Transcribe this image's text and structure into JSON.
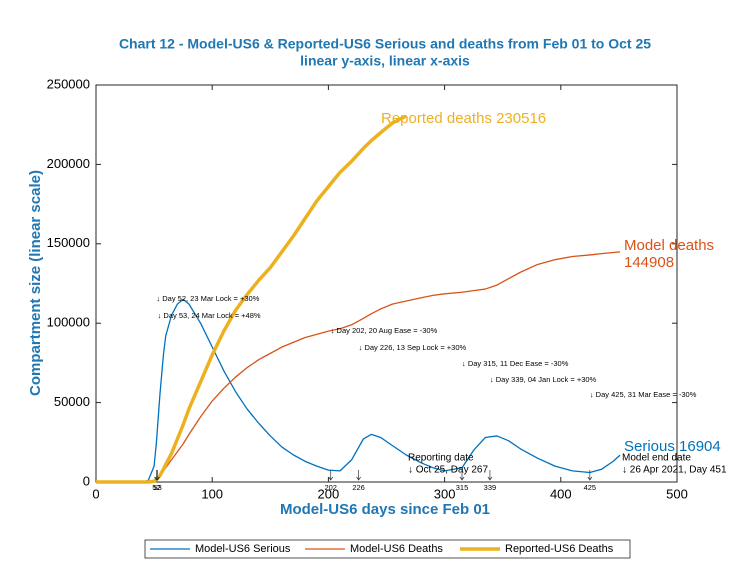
{
  "chart_data": {
    "type": "line",
    "title": "Chart 12 - Model-US6 & Reported-US6 Serious and deaths from Feb 01 to Oct 25",
    "subtitle": "linear y-axis, linear x-axis",
    "x_label": "Model-US6 days since Feb 01",
    "y_label": "Compartment size (linear scale)",
    "xlim": [
      0,
      500
    ],
    "xticks": [
      0,
      100,
      200,
      300,
      400,
      500
    ],
    "ylim": [
      0,
      250000
    ],
    "yticks": [
      0,
      50000,
      100000,
      150000,
      200000,
      250000
    ],
    "grid": false,
    "legend": "bottom",
    "x": [
      0,
      10,
      20,
      30,
      40,
      45,
      50,
      52,
      55,
      58,
      60,
      65,
      70,
      75,
      80,
      90,
      100,
      110,
      120,
      130,
      140,
      150,
      160,
      170,
      180,
      190,
      200,
      210,
      220,
      230,
      237,
      245,
      255,
      267,
      280,
      290,
      300,
      315,
      325,
      335,
      345,
      355,
      365,
      380,
      395,
      410,
      425,
      435,
      445,
      451
    ],
    "series": [
      {
        "name": "Model-US6 Serious",
        "color": "#0072bd",
        "width": 1.3,
        "values": [
          0,
          0,
          0,
          0,
          0,
          1000,
          10000,
          25000,
          55000,
          80000,
          92000,
          105000,
          112000,
          115000,
          112000,
          100000,
          85000,
          70000,
          57000,
          46000,
          37000,
          29000,
          22000,
          17000,
          13000,
          10000,
          7500,
          7000,
          14000,
          27000,
          30000,
          28000,
          23000,
          17000,
          12000,
          9000,
          7000,
          9000,
          20000,
          28000,
          29000,
          26000,
          21000,
          15000,
          10000,
          7000,
          6000,
          8000,
          13000,
          16904
        ]
      },
      {
        "name": "Model-US6 Deaths",
        "color": "#d95319",
        "width": 1.3,
        "values": [
          0,
          0,
          0,
          0,
          0,
          0,
          500,
          1500,
          4000,
          7000,
          9000,
          14000,
          19000,
          24000,
          30000,
          41000,
          51000,
          59000,
          66000,
          72000,
          77000,
          81000,
          85000,
          88000,
          91000,
          93000,
          95000,
          96500,
          99000,
          103000,
          106000,
          109000,
          112000,
          114000,
          116000,
          117500,
          118500,
          119500,
          120500,
          121500,
          124000,
          128000,
          132000,
          137000,
          140000,
          142000,
          143000,
          143800,
          144500,
          144908
        ]
      },
      {
        "name": "Reported-US6 Deaths",
        "color": "#edb120",
        "width": 3.5,
        "values": [
          0,
          0,
          0,
          0,
          0,
          0,
          500,
          1500,
          4000,
          8000,
          11000,
          18000,
          27000,
          36000,
          46000,
          63000,
          80000,
          95000,
          108000,
          118000,
          127000,
          135000,
          145000,
          155000,
          166000,
          177000,
          186000,
          195000,
          202000,
          210000,
          215000,
          220000,
          226000,
          230516,
          null,
          null,
          null,
          null,
          null,
          null,
          null,
          null,
          null,
          null,
          null,
          null,
          null,
          null,
          null,
          null
        ]
      }
    ],
    "interventions": [
      {
        "day": 52,
        "text": "↓ Day 52, 23 Mar Lock = +30%"
      },
      {
        "day": 53,
        "text": "↓ Day 53, 24 Mar Lock = +48%"
      },
      {
        "day": 202,
        "text": "↓ Day 202, 20 Aug Ease = -30%"
      },
      {
        "day": 226,
        "text": "↓ Day 226, 13 Sep Lock = +30%"
      },
      {
        "day": 315,
        "text": "↓ Day 315, 11 Dec Ease = -30%"
      },
      {
        "day": 339,
        "text": "↓ Day 339, 04 Jan Lock = +30%"
      },
      {
        "day": 425,
        "text": "↓ Day 425, 31 Mar Ease = -30%"
      }
    ],
    "annotations": [
      {
        "lines": [
          "Reported deaths 230516"
        ],
        "color": "#edb120"
      },
      {
        "lines": [
          "Model deaths",
          "144908"
        ],
        "color": "#d95319"
      },
      {
        "lines": [
          "Serious 16904"
        ],
        "color": "#0072bd"
      },
      {
        "lines": [
          "Reporting date",
          "↓ Oct 25, Day 267"
        ],
        "color": "#000000"
      },
      {
        "lines": [
          "Model end date",
          "↓ 26 Apr 2021, Day 451"
        ],
        "color": "#000000"
      }
    ]
  }
}
